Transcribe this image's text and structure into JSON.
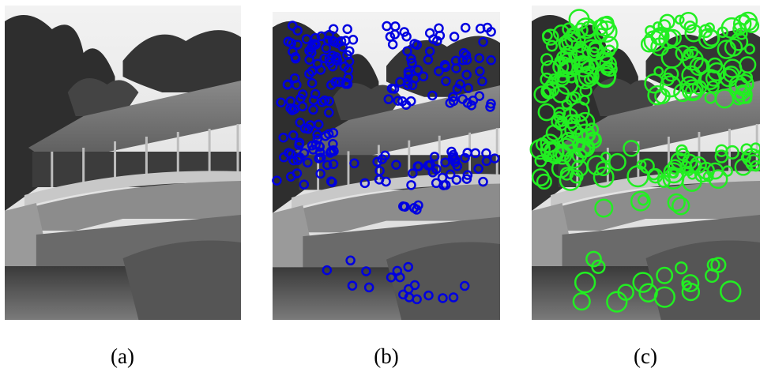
{
  "captions": [
    "(a)",
    "(b)",
    "(c)"
  ]
}
